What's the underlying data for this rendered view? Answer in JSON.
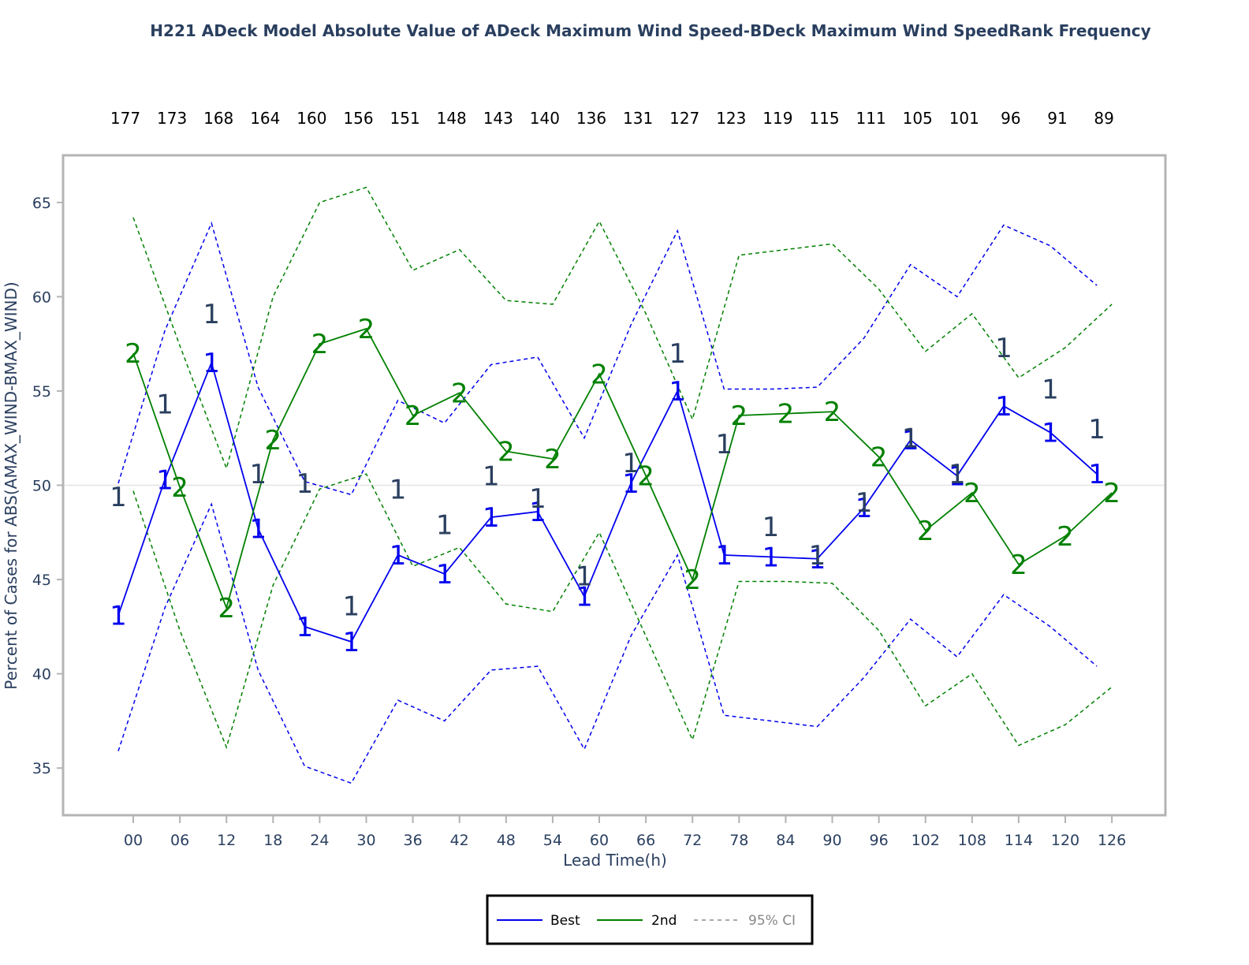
{
  "chart_data": {
    "type": "line",
    "title": "H221 ADeck Model Absolute Value of ADeck Maximum Wind Speed-BDeck Maximum Wind SpeedRank Frequency",
    "xlabel": "Lead Time(h)",
    "ylabel": "Percent of Cases for  ABS(AMAX_WIND-BMAX_WIND)",
    "categories": [
      "00",
      "06",
      "12",
      "18",
      "24",
      "30",
      "36",
      "42",
      "48",
      "54",
      "60",
      "66",
      "72",
      "78",
      "84",
      "90",
      "96",
      "102",
      "108",
      "114",
      "120",
      "126"
    ],
    "counts": [
      "177",
      "173",
      "168",
      "164",
      "160",
      "156",
      "151",
      "148",
      "143",
      "140",
      "136",
      "131",
      "127",
      "123",
      "119",
      "115",
      "111",
      "105",
      "101",
      "96",
      "91",
      "89"
    ],
    "ylim": [
      32.5,
      67.5
    ],
    "yticks": [
      35,
      40,
      45,
      50,
      55,
      60,
      65
    ],
    "reference_line": 50,
    "grid": false,
    "series": [
      {
        "name": "Best",
        "marker": "1",
        "color": "#0000ee",
        "values": [
          43.1,
          50.3,
          56.5,
          47.7,
          42.5,
          41.7,
          46.3,
          45.3,
          48.3,
          48.6,
          44.1,
          50.1,
          55.0,
          46.3,
          46.2,
          46.1,
          48.8,
          52.4,
          50.5,
          54.2,
          52.8,
          50.6
        ],
        "ci_upper": [
          50.1,
          58.2,
          63.9,
          55.2,
          50.2,
          49.5,
          54.5,
          53.3,
          56.4,
          56.8,
          52.5,
          58.5,
          63.5,
          55.1,
          55.1,
          55.2,
          57.8,
          61.7,
          60.0,
          63.8,
          62.7,
          60.6
        ],
        "ci_lower": [
          35.9,
          43.5,
          49.0,
          40.2,
          35.1,
          34.2,
          38.6,
          37.5,
          40.2,
          40.4,
          36.0,
          42.0,
          46.3,
          37.8,
          37.5,
          37.2,
          39.8,
          42.9,
          40.9,
          44.2,
          42.5,
          40.4
        ]
      },
      {
        "name": "2nd",
        "marker": "2",
        "color": "#008000",
        "values": [
          57.0,
          49.9,
          43.5,
          52.4,
          57.5,
          58.3,
          53.7,
          54.9,
          51.8,
          51.4,
          55.9,
          50.5,
          45.0,
          53.7,
          53.8,
          53.9,
          51.5,
          47.6,
          49.6,
          45.8,
          47.3,
          49.6
        ],
        "ci_upper": [
          64.2,
          57.4,
          50.9,
          60.0,
          65.0,
          65.8,
          61.4,
          62.5,
          59.8,
          59.6,
          64.0,
          59.1,
          53.5,
          62.2,
          62.5,
          62.8,
          60.4,
          57.1,
          59.1,
          55.7,
          57.3,
          59.6
        ],
        "ci_lower": [
          49.7,
          42.3,
          36.1,
          44.7,
          49.8,
          50.6,
          45.7,
          46.7,
          43.7,
          43.3,
          47.5,
          42.0,
          36.5,
          44.9,
          44.9,
          44.8,
          42.3,
          38.3,
          40.0,
          36.2,
          37.3,
          39.3
        ]
      },
      {
        "name": "",
        "marker": "1",
        "color": "#2a3f5f",
        "values": [
          49.4,
          54.3,
          59.1,
          50.6,
          50.1,
          43.6,
          49.8,
          47.9,
          50.5,
          49.3,
          45.2,
          51.2,
          57.0,
          52.2,
          47.8,
          46.3,
          49.1,
          52.5,
          50.6,
          57.3,
          55.1,
          53.0
        ]
      }
    ],
    "legend": {
      "placement": "bottom-center",
      "entries": [
        "Best",
        "2nd",
        "95% CI"
      ],
      "ci_color": "#a8a8a8"
    }
  }
}
